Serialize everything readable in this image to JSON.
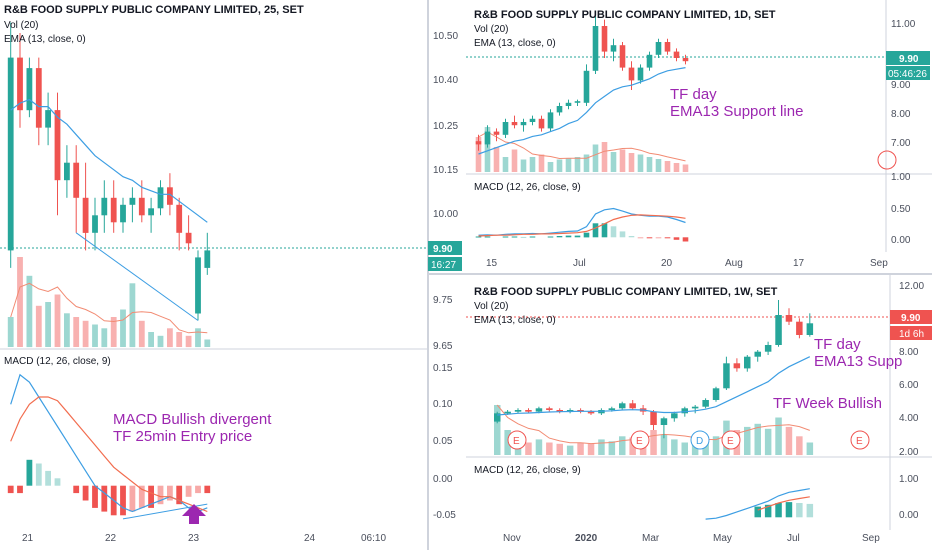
{
  "colors": {
    "up": "#26a69a",
    "down": "#ef5350",
    "ema": "#3d9ee3",
    "vol_ma": "#f28b73",
    "macd": "#3d9ee3",
    "signal": "#f26d4f",
    "annotation": "#9c27b0",
    "price_line": "#26a69a",
    "panel_sep": "#cfd3dc",
    "text": "#131722",
    "axis_text": "#4a4f5c"
  },
  "panels": {
    "p25": {
      "title": "R&B FOOD SUPPLY PUBLIC COMPANY LIMITED, 25, SET",
      "vol_label": "Vol (20)",
      "ema_label": "EMA (13, close, 0)",
      "macd_label": "MACD (12, 26, close, 9)",
      "price_ticks": [
        "10.50",
        "10.40",
        "10.25",
        "10.15",
        "10.00",
        "9.75",
        "9.65"
      ],
      "macd_ticks": [
        "0.15",
        "0.10",
        "0.05",
        "0.00",
        "-0.05"
      ],
      "x_ticks": [
        "21",
        "22",
        "23",
        "24",
        "06:10"
      ],
      "last_price": "9.90",
      "countdown": "16:27",
      "annotation_1": "MACD Bullish divergent",
      "annotation_2": "TF 25min Entry price"
    },
    "pday": {
      "title": "R&B FOOD SUPPLY PUBLIC COMPANY LIMITED, 1D, SET",
      "vol_label": "Vol (20)",
      "ema_label": "EMA (13, close, 0)",
      "macd_label": "MACD (12, 26, close, 9)",
      "price_ticks": [
        "11.00",
        "9.00",
        "8.00",
        "7.00",
        "1.00"
      ],
      "macd_ticks": [
        "0.50",
        "0.00"
      ],
      "x_ticks": [
        "15",
        "Jul",
        "20",
        "Aug",
        "17",
        "Sep"
      ],
      "last_price": "9.90",
      "countdown": "05:46:26",
      "annotation_1": "TF day",
      "annotation_2": "EMA13 Support line"
    },
    "pweek": {
      "title": "R&B FOOD SUPPLY PUBLIC COMPANY LIMITED, 1W, SET",
      "vol_label": "Vol (20)",
      "ema_label": "EMA (13, close, 0)",
      "macd_label": "MACD (12, 26, close, 9)",
      "price_ticks": [
        "12.00",
        "8.00",
        "6.00",
        "4.00",
        "2.00"
      ],
      "macd_ticks": [
        "1.00",
        "0.00"
      ],
      "x_ticks": [
        "Nov",
        "2020",
        "Mar",
        "May",
        "Jul",
        "Sep"
      ],
      "last_price": "9.90",
      "countdown": "1d 6h",
      "annotation_1": "TF day",
      "annotation_2": "EMA13 Supp",
      "annotation_3": "TF Week Bullish",
      "event_marker": "E",
      "dividend_marker": "D"
    }
  },
  "chart_data": [
    {
      "type": "candlestick",
      "title": "R&B FOOD SUPPLY PUBLIC COMPANY LIMITED, 25, SET",
      "timeframe": "25min",
      "x_labels": [
        "21",
        "22",
        "23",
        "24",
        "06:10"
      ],
      "ylim": [
        9.63,
        10.58
      ],
      "candles": [
        {
          "o": 9.9,
          "h": 10.55,
          "l": 9.85,
          "c": 10.45
        },
        {
          "o": 10.45,
          "h": 10.52,
          "l": 10.25,
          "c": 10.3
        },
        {
          "o": 10.3,
          "h": 10.45,
          "l": 10.28,
          "c": 10.42
        },
        {
          "o": 10.42,
          "h": 10.45,
          "l": 10.2,
          "c": 10.25
        },
        {
          "o": 10.25,
          "h": 10.35,
          "l": 10.2,
          "c": 10.3
        },
        {
          "o": 10.3,
          "h": 10.35,
          "l": 10.0,
          "c": 10.1
        },
        {
          "o": 10.1,
          "h": 10.2,
          "l": 10.05,
          "c": 10.15
        },
        {
          "o": 10.15,
          "h": 10.2,
          "l": 9.95,
          "c": 10.05
        },
        {
          "o": 10.05,
          "h": 10.15,
          "l": 9.9,
          "c": 9.95
        },
        {
          "o": 9.95,
          "h": 10.05,
          "l": 9.9,
          "c": 10.0
        },
        {
          "o": 10.0,
          "h": 10.1,
          "l": 9.95,
          "c": 10.05
        },
        {
          "o": 10.05,
          "h": 10.1,
          "l": 9.95,
          "c": 9.98
        },
        {
          "o": 9.98,
          "h": 10.05,
          "l": 9.95,
          "c": 10.03
        },
        {
          "o": 10.03,
          "h": 10.08,
          "l": 9.98,
          "c": 10.05
        },
        {
          "o": 10.05,
          "h": 10.1,
          "l": 9.98,
          "c": 10.0
        },
        {
          "o": 10.0,
          "h": 10.05,
          "l": 9.95,
          "c": 10.02
        },
        {
          "o": 10.02,
          "h": 10.1,
          "l": 10.0,
          "c": 10.08
        },
        {
          "o": 10.08,
          "h": 10.12,
          "l": 10.0,
          "c": 10.03
        },
        {
          "o": 10.03,
          "h": 10.05,
          "l": 9.9,
          "c": 9.95
        },
        {
          "o": 9.95,
          "h": 10.0,
          "l": 9.9,
          "c": 9.92
        },
        {
          "o": 9.72,
          "h": 9.9,
          "l": 9.7,
          "c": 9.88
        },
        {
          "o": 9.85,
          "h": 9.95,
          "l": 9.83,
          "c": 9.9
        }
      ],
      "ema13": [
        10.3,
        10.32,
        10.33,
        10.31,
        10.31,
        10.28,
        10.26,
        10.23,
        10.2,
        10.17,
        10.15,
        10.13,
        10.11,
        10.1,
        10.08,
        10.07,
        10.06,
        10.06,
        10.04,
        10.02,
        10.0,
        9.98
      ],
      "volume": [
        40,
        120,
        95,
        55,
        60,
        70,
        45,
        40,
        35,
        30,
        25,
        40,
        50,
        85,
        35,
        20,
        15,
        25,
        20,
        15,
        25,
        10
      ],
      "macd": [
        0.11,
        0.15,
        0.14,
        0.12,
        0.1,
        0.08,
        0.06,
        0.04,
        0.02,
        0.0,
        -0.01,
        -0.02,
        -0.03,
        -0.035,
        -0.03,
        -0.025,
        -0.02,
        -0.015,
        -0.02,
        -0.03,
        -0.035,
        -0.03
      ],
      "signal": [
        0.06,
        0.09,
        0.11,
        0.12,
        0.12,
        0.115,
        0.1,
        0.085,
        0.07,
        0.055,
        0.04,
        0.025,
        0.015,
        0.005,
        -0.005,
        -0.01,
        -0.015,
        -0.015,
        -0.02,
        -0.025,
        -0.03,
        -0.035
      ],
      "histogram": [
        -0.01,
        -0.01,
        0.035,
        0.03,
        0.02,
        0.01,
        0.0,
        -0.01,
        -0.02,
        -0.03,
        -0.035,
        -0.04,
        -0.04,
        -0.035,
        -0.03,
        -0.03,
        -0.025,
        -0.02,
        -0.025,
        -0.015,
        -0.01,
        -0.01
      ]
    },
    {
      "type": "candlestick",
      "title": "R&B FOOD SUPPLY PUBLIC COMPANY LIMITED, 1D, SET",
      "timeframe": "1D",
      "x_labels": [
        "15",
        "Jul",
        "20",
        "Aug",
        "17",
        "Sep"
      ],
      "ylim": [
        6.5,
        11.5
      ],
      "candles": [
        {
          "o": 7.4,
          "h": 7.6,
          "l": 7.1,
          "c": 7.3
        },
        {
          "o": 7.3,
          "h": 7.9,
          "l": 7.2,
          "c": 7.7
        },
        {
          "o": 7.7,
          "h": 7.8,
          "l": 7.4,
          "c": 7.6
        },
        {
          "o": 7.6,
          "h": 8.1,
          "l": 7.5,
          "c": 8.0
        },
        {
          "o": 8.0,
          "h": 8.2,
          "l": 7.8,
          "c": 7.9
        },
        {
          "o": 7.9,
          "h": 8.1,
          "l": 7.7,
          "c": 8.0
        },
        {
          "o": 8.0,
          "h": 8.2,
          "l": 7.9,
          "c": 8.1
        },
        {
          "o": 8.1,
          "h": 8.2,
          "l": 7.7,
          "c": 7.8
        },
        {
          "o": 7.8,
          "h": 8.4,
          "l": 7.7,
          "c": 8.3
        },
        {
          "o": 8.3,
          "h": 8.6,
          "l": 8.2,
          "c": 8.5
        },
        {
          "o": 8.5,
          "h": 8.7,
          "l": 8.4,
          "c": 8.6
        },
        {
          "o": 8.6,
          "h": 8.7,
          "l": 8.5,
          "c": 8.65
        },
        {
          "o": 8.6,
          "h": 9.8,
          "l": 8.5,
          "c": 9.6
        },
        {
          "o": 9.6,
          "h": 11.3,
          "l": 9.5,
          "c": 11.0
        },
        {
          "o": 11.0,
          "h": 11.2,
          "l": 10.0,
          "c": 10.2
        },
        {
          "o": 10.2,
          "h": 10.6,
          "l": 9.9,
          "c": 10.4
        },
        {
          "o": 10.4,
          "h": 10.5,
          "l": 9.6,
          "c": 9.7
        },
        {
          "o": 9.7,
          "h": 9.9,
          "l": 9.0,
          "c": 9.3
        },
        {
          "o": 9.3,
          "h": 9.8,
          "l": 9.2,
          "c": 9.7
        },
        {
          "o": 9.7,
          "h": 10.2,
          "l": 9.6,
          "c": 10.1
        },
        {
          "o": 10.1,
          "h": 10.6,
          "l": 10.0,
          "c": 10.5
        },
        {
          "o": 10.5,
          "h": 10.6,
          "l": 10.1,
          "c": 10.2
        },
        {
          "o": 10.2,
          "h": 10.3,
          "l": 9.9,
          "c": 10.0
        },
        {
          "o": 10.0,
          "h": 10.1,
          "l": 9.8,
          "c": 9.9
        }
      ],
      "ema13": [
        7.0,
        7.1,
        7.2,
        7.3,
        7.4,
        7.45,
        7.55,
        7.6,
        7.7,
        7.8,
        7.95,
        8.05,
        8.3,
        8.6,
        8.8,
        9.0,
        9.1,
        9.15,
        9.25,
        9.35,
        9.5,
        9.6,
        9.65,
        9.7
      ],
      "volume": [
        70,
        90,
        50,
        30,
        45,
        25,
        30,
        35,
        20,
        25,
        28,
        30,
        35,
        55,
        60,
        40,
        45,
        38,
        35,
        30,
        26,
        22,
        18,
        15
      ],
      "macd": [
        0.05,
        0.06,
        0.05,
        0.07,
        0.08,
        0.08,
        0.09,
        0.08,
        0.1,
        0.12,
        0.14,
        0.15,
        0.25,
        0.55,
        0.65,
        0.68,
        0.62,
        0.55,
        0.52,
        0.5,
        0.5,
        0.48,
        0.42,
        0.35
      ],
      "signal": [
        0.03,
        0.04,
        0.05,
        0.05,
        0.06,
        0.07,
        0.07,
        0.08,
        0.08,
        0.09,
        0.1,
        0.11,
        0.14,
        0.22,
        0.32,
        0.42,
        0.48,
        0.52,
        0.53,
        0.52,
        0.51,
        0.5,
        0.48,
        0.45
      ],
      "histogram": [
        0.02,
        0.02,
        0.0,
        0.02,
        0.02,
        0.01,
        0.02,
        0.0,
        0.02,
        0.03,
        0.04,
        0.04,
        0.11,
        0.33,
        0.33,
        0.26,
        0.14,
        0.03,
        -0.01,
        -0.02,
        -0.01,
        -0.02,
        -0.06,
        -0.1
      ]
    },
    {
      "type": "candlestick",
      "title": "R&B FOOD SUPPLY PUBLIC COMPANY LIMITED, 1W, SET",
      "timeframe": "1W",
      "x_labels": [
        "Nov",
        "2020",
        "Mar",
        "May",
        "Jul",
        "Sep"
      ],
      "ylim": [
        2.0,
        12.5
      ],
      "candles": [
        {
          "o": 4.0,
          "h": 4.6,
          "l": 3.9,
          "c": 4.5
        },
        {
          "o": 4.5,
          "h": 4.7,
          "l": 4.4,
          "c": 4.6
        },
        {
          "o": 4.6,
          "h": 4.8,
          "l": 4.5,
          "c": 4.7
        },
        {
          "o": 4.7,
          "h": 4.8,
          "l": 4.5,
          "c": 4.6
        },
        {
          "o": 4.6,
          "h": 4.9,
          "l": 4.5,
          "c": 4.8
        },
        {
          "o": 4.8,
          "h": 4.9,
          "l": 4.6,
          "c": 4.7
        },
        {
          "o": 4.7,
          "h": 4.8,
          "l": 4.5,
          "c": 4.6
        },
        {
          "o": 4.6,
          "h": 4.8,
          "l": 4.5,
          "c": 4.7
        },
        {
          "o": 4.7,
          "h": 4.8,
          "l": 4.5,
          "c": 4.6
        },
        {
          "o": 4.6,
          "h": 4.7,
          "l": 4.4,
          "c": 4.5
        },
        {
          "o": 4.5,
          "h": 4.8,
          "l": 4.4,
          "c": 4.7
        },
        {
          "o": 4.7,
          "h": 4.9,
          "l": 4.6,
          "c": 4.8
        },
        {
          "o": 4.8,
          "h": 5.2,
          "l": 4.7,
          "c": 5.1
        },
        {
          "o": 5.1,
          "h": 5.3,
          "l": 4.7,
          "c": 4.8
        },
        {
          "o": 4.8,
          "h": 5.0,
          "l": 4.4,
          "c": 4.6
        },
        {
          "o": 4.6,
          "h": 4.7,
          "l": 3.5,
          "c": 3.8
        },
        {
          "o": 3.8,
          "h": 4.3,
          "l": 3.0,
          "c": 4.2
        },
        {
          "o": 4.2,
          "h": 4.6,
          "l": 4.0,
          "c": 4.5
        },
        {
          "o": 4.5,
          "h": 4.9,
          "l": 4.3,
          "c": 4.8
        },
        {
          "o": 4.8,
          "h": 5.0,
          "l": 4.5,
          "c": 4.9
        },
        {
          "o": 4.9,
          "h": 5.4,
          "l": 4.8,
          "c": 5.3
        },
        {
          "o": 5.3,
          "h": 6.1,
          "l": 5.2,
          "c": 6.0
        },
        {
          "o": 6.0,
          "h": 7.9,
          "l": 5.9,
          "c": 7.5
        },
        {
          "o": 7.5,
          "h": 7.8,
          "l": 7.0,
          "c": 7.2
        },
        {
          "o": 7.2,
          "h": 8.0,
          "l": 7.0,
          "c": 7.9
        },
        {
          "o": 7.9,
          "h": 8.3,
          "l": 7.6,
          "c": 8.2
        },
        {
          "o": 8.2,
          "h": 8.8,
          "l": 8.0,
          "c": 8.6
        },
        {
          "o": 8.6,
          "h": 11.3,
          "l": 8.5,
          "c": 10.4
        },
        {
          "o": 10.4,
          "h": 10.8,
          "l": 9.8,
          "c": 10.0
        },
        {
          "o": 10.0,
          "h": 10.2,
          "l": 9.0,
          "c": 9.2
        },
        {
          "o": 9.2,
          "h": 10.5,
          "l": 9.1,
          "c": 9.9
        }
      ],
      "ema13": [
        4.4,
        4.45,
        4.5,
        4.52,
        4.55,
        4.58,
        4.6,
        4.61,
        4.62,
        4.62,
        4.63,
        4.65,
        4.7,
        4.72,
        4.7,
        4.6,
        4.55,
        4.55,
        4.6,
        4.65,
        4.75,
        4.9,
        5.2,
        5.5,
        5.8,
        6.1,
        6.4,
        6.9,
        7.3,
        7.6,
        7.9
      ],
      "volume": [
        80,
        40,
        30,
        20,
        25,
        20,
        18,
        15,
        20,
        18,
        25,
        22,
        30,
        28,
        35,
        40,
        32,
        25,
        20,
        22,
        26,
        30,
        55,
        40,
        45,
        50,
        42,
        60,
        45,
        30,
        20
      ],
      "macd": [
        null,
        null,
        null,
        null,
        null,
        null,
        null,
        null,
        null,
        null,
        null,
        null,
        null,
        null,
        null,
        null,
        null,
        null,
        null,
        null,
        -0.1,
        -0.05,
        0.1,
        0.3,
        0.5,
        0.7,
        0.9,
        1.2,
        1.4,
        1.5,
        1.6
      ],
      "signal": [
        null,
        null,
        null,
        null,
        null,
        null,
        null,
        null,
        null,
        null,
        null,
        null,
        null,
        null,
        null,
        null,
        null,
        null,
        null,
        null,
        null,
        null,
        null,
        null,
        null,
        0.4,
        0.6,
        0.8,
        0.95,
        1.05,
        1.15
      ],
      "histogram": [
        0,
        0,
        0,
        0,
        0,
        0,
        0,
        0,
        0,
        0,
        0,
        0,
        0,
        0,
        0,
        0,
        0,
        0,
        0,
        0,
        0,
        0,
        0,
        0,
        0,
        0.6,
        0.7,
        0.8,
        0.85,
        0.8,
        0.75
      ]
    }
  ]
}
